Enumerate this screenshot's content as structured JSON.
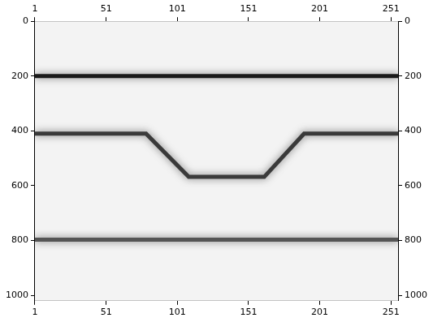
{
  "chart_data": {
    "type": "line",
    "xlim": [
      1,
      256
    ],
    "xticks": [
      1,
      51,
      101,
      151,
      201,
      251
    ],
    "ylim": [
      0,
      1020
    ],
    "yticks": [
      0,
      200,
      400,
      600,
      800,
      1000
    ],
    "grid": false,
    "series": [
      {
        "color": "#1a1a1a",
        "x": [
          1,
          256
        ],
        "values": [
          200,
          200
        ]
      },
      {
        "color": "#3a3a3a",
        "x": [
          1,
          79,
          109,
          162,
          190,
          256
        ],
        "values": [
          410,
          410,
          568,
          568,
          410,
          410
        ]
      },
      {
        "color": "#555555",
        "x": [
          1,
          256
        ],
        "values": [
          797,
          797
        ]
      }
    ]
  }
}
